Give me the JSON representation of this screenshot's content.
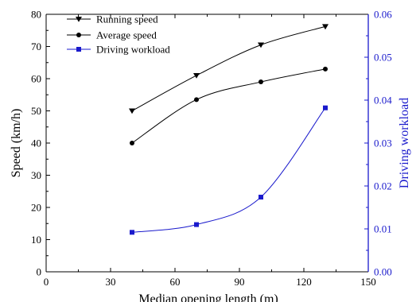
{
  "chart_data": {
    "type": "line",
    "xlabel": "Median opening length (m)",
    "ylabel": "Speed (km/h)",
    "y2label": "Driving workload",
    "xlim": [
      0,
      150
    ],
    "ylim": [
      0,
      80
    ],
    "y2lim": [
      0,
      0.06
    ],
    "xticks": [
      "0",
      "30",
      "60",
      "90",
      "120",
      "150"
    ],
    "yticks": [
      "0",
      "10",
      "20",
      "30",
      "40",
      "50",
      "60",
      "70",
      "80"
    ],
    "y2ticks": [
      "0.00",
      "0.01",
      "0.02",
      "0.03",
      "0.04",
      "0.05",
      "0.06"
    ],
    "legend_position": "top-left",
    "grid": false,
    "colors": {
      "speed": "#000000",
      "workload": "#1a1acc"
    },
    "series": [
      {
        "name": "Running speed",
        "axis": "left",
        "marker": "triangle-down",
        "x": [
          40,
          70,
          100,
          130
        ],
        "y": [
          50,
          61,
          70.5,
          76.2
        ]
      },
      {
        "name": "Average speed",
        "axis": "left",
        "marker": "circle",
        "x": [
          40,
          70,
          100,
          130
        ],
        "y": [
          40,
          53.5,
          59,
          63
        ]
      },
      {
        "name": "Driving workload",
        "axis": "right",
        "marker": "square",
        "x": [
          40,
          70,
          100,
          130
        ],
        "y": [
          0.0092,
          0.011,
          0.0174,
          0.0382
        ]
      }
    ]
  }
}
